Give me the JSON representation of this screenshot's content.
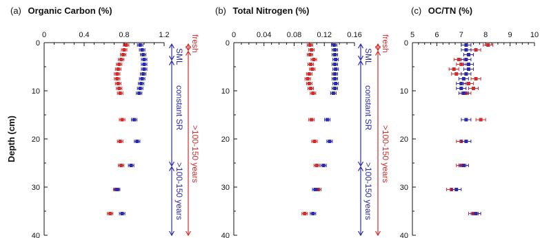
{
  "chart_data": [
    {
      "panel": "(a)",
      "type": "scatter",
      "title": "Organic Carbon (%)",
      "ylabel": "Depth (cm)",
      "xlim": [
        0,
        1.2
      ],
      "ylim": [
        0,
        40
      ],
      "x_ticks": [
        "0",
        "0.4",
        "0.8",
        "1.2"
      ],
      "y_ticks": [
        "0",
        "10",
        "20",
        "30",
        "40"
      ],
      "series": [
        {
          "color": "#d42a2a",
          "points": [
            {
              "x": 0.82,
              "y": 0.5
            },
            {
              "x": 0.8,
              "y": 1.5
            },
            {
              "x": 0.79,
              "y": 2.5
            },
            {
              "x": 0.77,
              "y": 3.5
            },
            {
              "x": 0.75,
              "y": 4.5
            },
            {
              "x": 0.74,
              "y": 5.5
            },
            {
              "x": 0.73,
              "y": 6.5
            },
            {
              "x": 0.73,
              "y": 7.5
            },
            {
              "x": 0.74,
              "y": 8.5
            },
            {
              "x": 0.75,
              "y": 9.5
            },
            {
              "x": 0.76,
              "y": 10.5
            },
            {
              "x": 0.78,
              "y": 16
            },
            {
              "x": 0.76,
              "y": 20.5
            },
            {
              "x": 0.77,
              "y": 25.5
            },
            {
              "x": 0.72,
              "y": 30.5
            },
            {
              "x": 0.66,
              "y": 35.5
            }
          ]
        },
        {
          "color": "#2a2ab0",
          "points": [
            {
              "x": 0.96,
              "y": 0.5
            },
            {
              "x": 0.98,
              "y": 1.5
            },
            {
              "x": 0.99,
              "y": 2.5
            },
            {
              "x": 1.0,
              "y": 3.5
            },
            {
              "x": 1.0,
              "y": 4.5
            },
            {
              "x": 1.0,
              "y": 5.5
            },
            {
              "x": 0.99,
              "y": 6.5
            },
            {
              "x": 0.98,
              "y": 7.5
            },
            {
              "x": 0.97,
              "y": 8.5
            },
            {
              "x": 0.96,
              "y": 9.5
            },
            {
              "x": 0.95,
              "y": 10.5
            },
            {
              "x": 0.9,
              "y": 16
            },
            {
              "x": 0.93,
              "y": 20.5
            },
            {
              "x": 0.87,
              "y": 25.5
            },
            {
              "x": 0.73,
              "y": 30.5
            },
            {
              "x": 0.78,
              "y": 35.5
            }
          ]
        }
      ],
      "annotations_blue": [
        "SML",
        "constant SR",
        ">100-150 years"
      ],
      "annotations_red": [
        "fresh",
        ">100-150 years"
      ]
    },
    {
      "panel": "(b)",
      "type": "scatter",
      "title": "Total Nitrogen (%)",
      "xlim": [
        0,
        0.16
      ],
      "ylim": [
        0,
        40
      ],
      "x_ticks": [
        "0",
        "0.04",
        "0.08",
        "0.12",
        "0.16"
      ],
      "y_ticks": [
        "0",
        "10",
        "20",
        "30",
        "40"
      ],
      "series": [
        {
          "color": "#d42a2a",
          "points": [
            {
              "x": 0.101,
              "y": 0.5
            },
            {
              "x": 0.103,
              "y": 1.5
            },
            {
              "x": 0.101,
              "y": 2.5
            },
            {
              "x": 0.106,
              "y": 3.5
            },
            {
              "x": 0.102,
              "y": 4.5
            },
            {
              "x": 0.104,
              "y": 5.5
            },
            {
              "x": 0.1,
              "y": 6.5
            },
            {
              "x": 0.098,
              "y": 7.5
            },
            {
              "x": 0.1,
              "y": 8.5
            },
            {
              "x": 0.102,
              "y": 9.5
            },
            {
              "x": 0.105,
              "y": 10.5
            },
            {
              "x": 0.103,
              "y": 16
            },
            {
              "x": 0.107,
              "y": 20.5
            },
            {
              "x": 0.11,
              "y": 25.5
            },
            {
              "x": 0.112,
              "y": 30.5
            },
            {
              "x": 0.094,
              "y": 35.5
            }
          ]
        },
        {
          "color": "#2a2ab0",
          "points": [
            {
              "x": 0.133,
              "y": 0.5
            },
            {
              "x": 0.134,
              "y": 1.5
            },
            {
              "x": 0.134,
              "y": 2.5
            },
            {
              "x": 0.135,
              "y": 3.5
            },
            {
              "x": 0.134,
              "y": 4.5
            },
            {
              "x": 0.135,
              "y": 5.5
            },
            {
              "x": 0.134,
              "y": 6.5
            },
            {
              "x": 0.134,
              "y": 7.5
            },
            {
              "x": 0.135,
              "y": 8.5
            },
            {
              "x": 0.134,
              "y": 9.5
            },
            {
              "x": 0.132,
              "y": 10.5
            },
            {
              "x": 0.124,
              "y": 16
            },
            {
              "x": 0.127,
              "y": 20.5
            },
            {
              "x": 0.119,
              "y": 25.5
            },
            {
              "x": 0.108,
              "y": 30.5
            },
            {
              "x": 0.105,
              "y": 35.5
            }
          ]
        }
      ],
      "annotations_blue": [
        "SML",
        "constant SR",
        ">100-150 years"
      ],
      "annotations_red": [
        "fresh",
        ">100-150 years"
      ]
    },
    {
      "panel": "(c)",
      "type": "scatter",
      "title": "OC/TN (%)",
      "xlim": [
        5,
        10
      ],
      "ylim": [
        0,
        40
      ],
      "x_ticks": [
        "5",
        "6",
        "7",
        "8",
        "9",
        "10"
      ],
      "y_ticks": [
        "0",
        "10",
        "20",
        "30",
        "40"
      ],
      "series": [
        {
          "color": "#d42a2a",
          "points": [
            {
              "x": 8.1,
              "y": 0.5
            },
            {
              "x": 7.6,
              "y": 1.5
            },
            {
              "x": 7.3,
              "y": 2.5
            },
            {
              "x": 6.9,
              "y": 3.5
            },
            {
              "x": 7.0,
              "y": 4.5
            },
            {
              "x": 6.7,
              "y": 5.5
            },
            {
              "x": 6.8,
              "y": 6.5
            },
            {
              "x": 7.6,
              "y": 7.5
            },
            {
              "x": 7.3,
              "y": 8.5
            },
            {
              "x": 7.5,
              "y": 9.5
            },
            {
              "x": 7.2,
              "y": 10.5
            },
            {
              "x": 7.8,
              "y": 16
            },
            {
              "x": 7.0,
              "y": 20.5
            },
            {
              "x": 7.0,
              "y": 25.5
            },
            {
              "x": 6.6,
              "y": 30.5
            },
            {
              "x": 7.5,
              "y": 35.5
            }
          ]
        },
        {
          "color": "#2a2ab0",
          "points": [
            {
              "x": 7.2,
              "y": 0.5
            },
            {
              "x": 7.2,
              "y": 1.5
            },
            {
              "x": 7.3,
              "y": 2.5
            },
            {
              "x": 7.2,
              "y": 3.5
            },
            {
              "x": 7.3,
              "y": 4.5
            },
            {
              "x": 7.3,
              "y": 5.5
            },
            {
              "x": 7.2,
              "y": 6.5
            },
            {
              "x": 7.1,
              "y": 7.5
            },
            {
              "x": 7.0,
              "y": 8.5
            },
            {
              "x": 7.0,
              "y": 9.5
            },
            {
              "x": 7.1,
              "y": 10.5
            },
            {
              "x": 7.2,
              "y": 16
            },
            {
              "x": 7.2,
              "y": 20.5
            },
            {
              "x": 7.1,
              "y": 25.5
            },
            {
              "x": 6.8,
              "y": 30.5
            },
            {
              "x": 7.6,
              "y": 35.5
            }
          ]
        }
      ]
    }
  ]
}
